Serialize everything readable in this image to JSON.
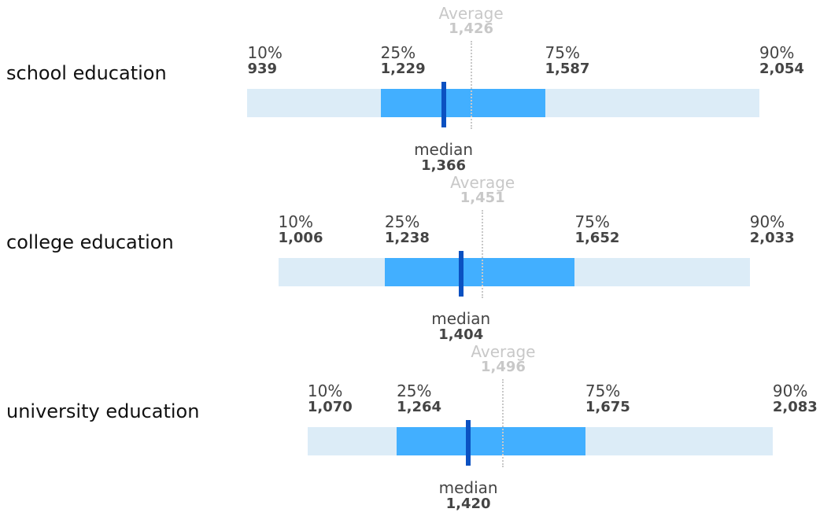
{
  "chart_data": {
    "type": "bar",
    "categories": [
      "school education",
      "college education",
      "university education"
    ],
    "labels": {
      "p10": "10%",
      "p25": "25%",
      "p75": "75%",
      "p90": "90%",
      "median": "median",
      "average": "Average"
    },
    "rows": [
      {
        "label": "school education",
        "p10": 939,
        "p25": 1229,
        "median": 1366,
        "average": 1426,
        "p75": 1587,
        "p90": 2054,
        "p10_text": "939",
        "p25_text": "1,229",
        "median_text": "1,366",
        "average_text": "1,426",
        "p75_text": "1,587",
        "p90_text": "2,054"
      },
      {
        "label": "college education",
        "p10": 1006,
        "p25": 1238,
        "median": 1404,
        "average": 1451,
        "p75": 1652,
        "p90": 2033,
        "p10_text": "1,006",
        "p25_text": "1,238",
        "median_text": "1,404",
        "average_text": "1,451",
        "p75_text": "1,652",
        "p90_text": "2,033"
      },
      {
        "label": "university education",
        "p10": 1070,
        "p25": 1264,
        "median": 1420,
        "average": 1496,
        "p75": 1675,
        "p90": 2083,
        "p10_text": "1,070",
        "p25_text": "1,264",
        "median_text": "1,420",
        "average_text": "1,496",
        "p75_text": "1,675",
        "p90_text": "2,083"
      }
    ],
    "xlim": [
      400,
      2210
    ],
    "colors": {
      "outer_band": "#dcecf7",
      "inner_band": "#42afff",
      "median": "#0b51c1",
      "average": "#c8c8c8",
      "text": "#444444"
    }
  }
}
